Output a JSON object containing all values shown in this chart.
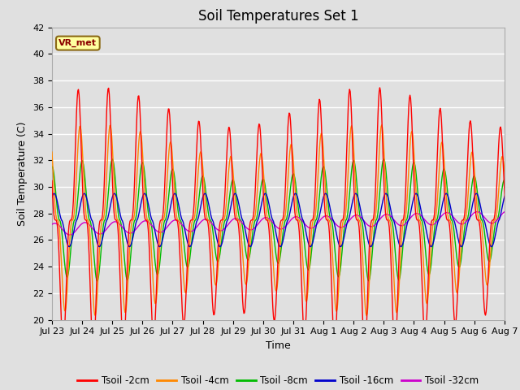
{
  "title": "Soil Temperatures Set 1",
  "xlabel": "Time",
  "ylabel": "Soil Temperature (C)",
  "ylim": [
    20,
    42
  ],
  "annotation": "VR_met",
  "legend_labels": [
    "Tsoil -2cm",
    "Tsoil -4cm",
    "Tsoil -8cm",
    "Tsoil -16cm",
    "Tsoil -32cm"
  ],
  "line_colors": [
    "#FF0000",
    "#FF8800",
    "#00BB00",
    "#0000CC",
    "#CC00CC"
  ],
  "xtick_labels": [
    "Jul 23",
    "Jul 24",
    "Jul 25",
    "Jul 26",
    "Jul 27",
    "Jul 28",
    "Jul 29",
    "Jul 30",
    "Jul 31",
    "Aug 1",
    "Aug 2",
    "Aug 3",
    "Aug 4",
    "Aug 5",
    "Aug 6",
    "Aug 7"
  ],
  "bg_color": "#E0E0E0",
  "grid_color": "#FFFFFF",
  "title_fontsize": 12,
  "label_fontsize": 9,
  "tick_fontsize": 8,
  "annotation_color": "#8B0000",
  "annotation_bg": "#FFFFA0",
  "annotation_border": "#8B6914"
}
